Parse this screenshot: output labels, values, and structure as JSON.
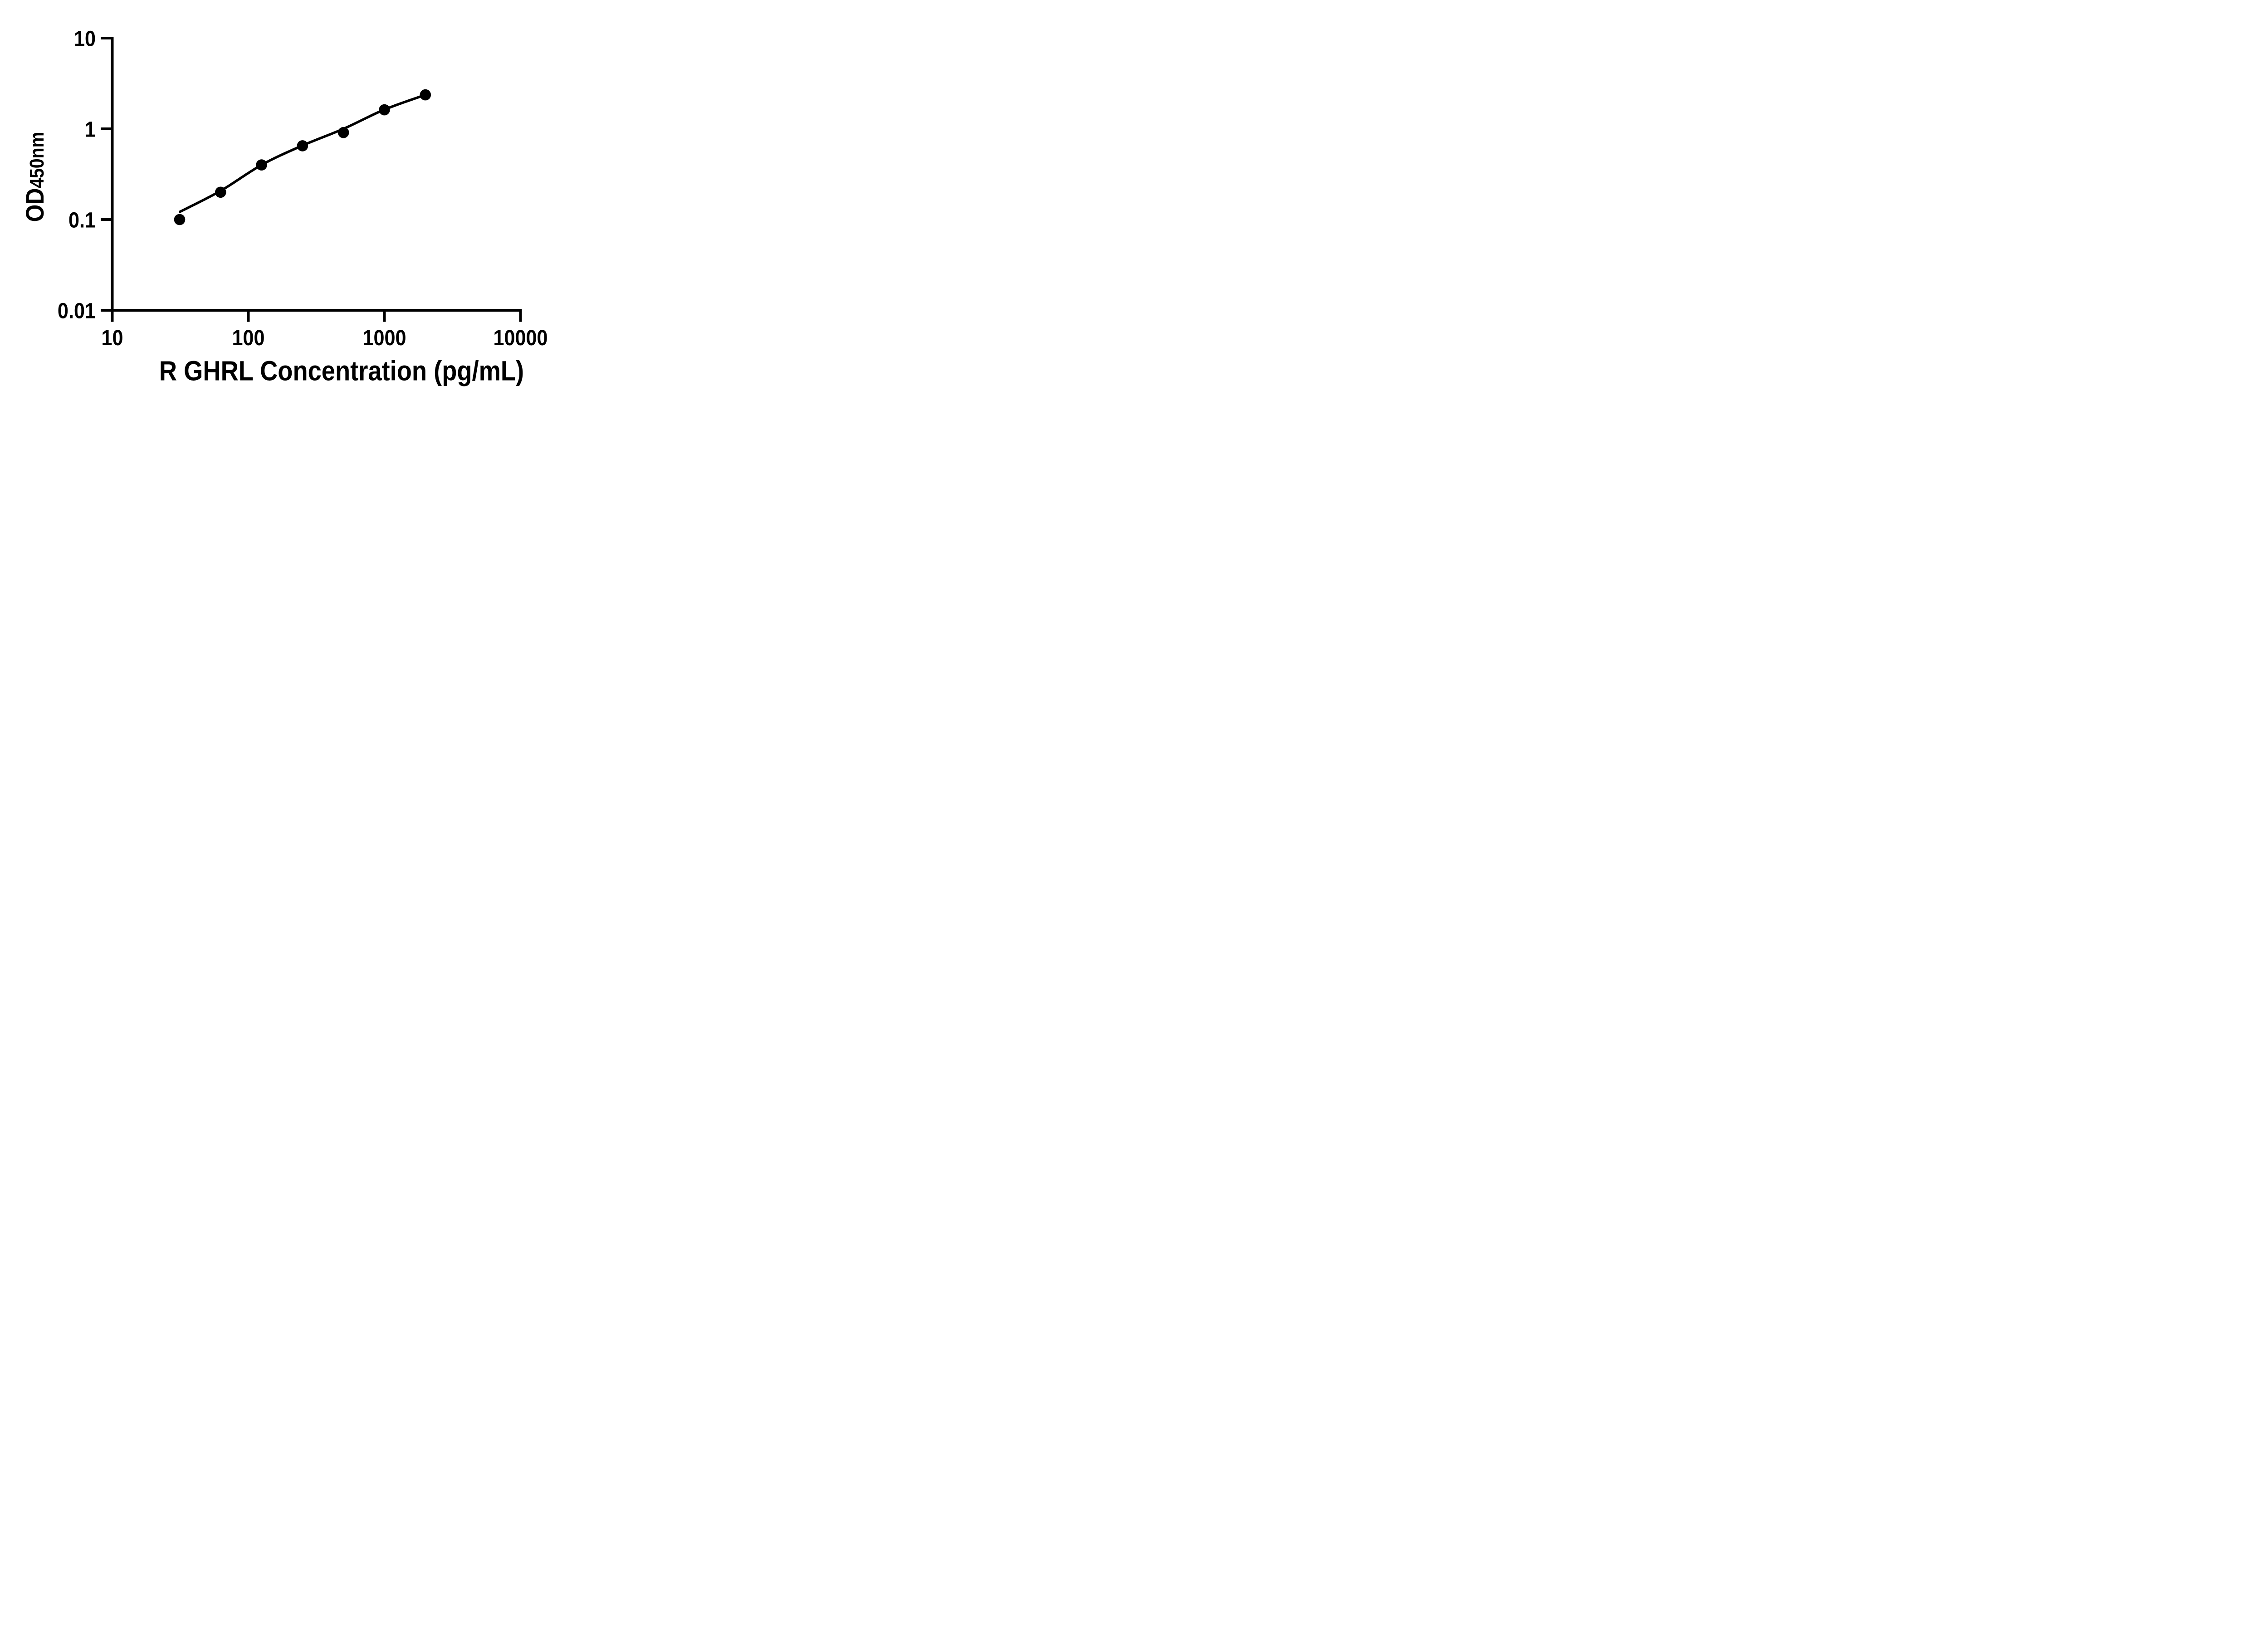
{
  "figure": {
    "background_color": "#ffffff",
    "ink_color": "#000000"
  },
  "chart_data": {
    "type": "scatter",
    "title": "",
    "xlabel": "R GHRL Concentration (pg/mL)",
    "ylabel": "OD",
    "ylabel_subscript": "450nm",
    "x_scale": "log10",
    "y_scale": "log10",
    "xlim": [
      10,
      10000
    ],
    "ylim": [
      0.01,
      10
    ],
    "grid": false,
    "legend_position": "none",
    "x_ticks": [
      {
        "value": 10,
        "label": "10"
      },
      {
        "value": 100,
        "label": "100"
      },
      {
        "value": 1000,
        "label": "1000"
      },
      {
        "value": 10000,
        "label": "10000"
      }
    ],
    "y_ticks": [
      {
        "value": 10,
        "label": "10"
      },
      {
        "value": 1,
        "label": "1"
      },
      {
        "value": 0.1,
        "label": "0.1"
      },
      {
        "value": 0.01,
        "label": "0.01"
      }
    ],
    "series": [
      {
        "name": "standard-points",
        "type": "scatter",
        "marker": "filled-circle",
        "color": "#000000",
        "x": [
          31.25,
          62.5,
          125,
          250,
          500,
          1000,
          2000
        ],
        "y": [
          0.1,
          0.2,
          0.4,
          0.65,
          0.91,
          1.62,
          2.37
        ]
      },
      {
        "name": "fit-curve",
        "type": "line",
        "color": "#000000",
        "x": [
          31.5,
          62.5,
          125,
          250,
          500,
          1000,
          2000
        ],
        "y": [
          0.122,
          0.207,
          0.4,
          0.655,
          1.0,
          1.63,
          2.37
        ]
      }
    ]
  }
}
